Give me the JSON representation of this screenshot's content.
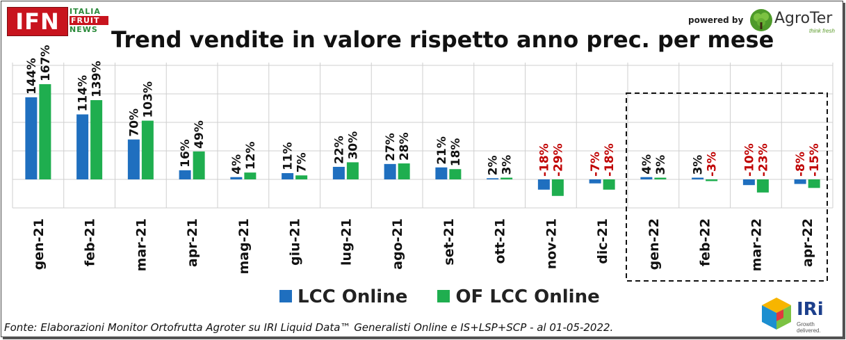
{
  "branding": {
    "ifn_main": "IFN",
    "ifn_line1": "ITALIA",
    "ifn_line2": "FRUIT",
    "ifn_line3": "NEWS",
    "powered_by": "powered by",
    "agroter_name": "AgroTer",
    "agroter_tagline": "think fresh",
    "iri_name": "IRi",
    "iri_tagline": "Growth delivered."
  },
  "source_note": "Fonte: Elaborazioni Monitor Ortofrutta Agroter su IRI Liquid Data™ Generalisti Online e IS+LSP+SCP - al 01-05-2022.",
  "colors": {
    "lcc": "#1f6fbf",
    "of_lcc": "#1fae4f",
    "positive_label": "#111111",
    "negative_label": "#c00000",
    "grid": "#cfcfcf"
  },
  "chart_data": {
    "type": "bar",
    "title": "Trend vendite in valore rispetto anno prec. per mese",
    "categories": [
      "gen-21",
      "feb-21",
      "mar-21",
      "apr-21",
      "mag-21",
      "giu-21",
      "lug-21",
      "ago-21",
      "set-21",
      "ott-21",
      "nov-21",
      "dic-21",
      "gen-22",
      "feb-22",
      "mar-22",
      "apr-22"
    ],
    "series": [
      {
        "name": "LCC Online",
        "values": [
          144,
          114,
          70,
          16,
          4,
          11,
          22,
          27,
          21,
          2,
          -18,
          -7,
          4,
          3,
          -10,
          -8
        ]
      },
      {
        "name": "OF LCC Online",
        "values": [
          167,
          139,
          103,
          49,
          12,
          7,
          30,
          28,
          18,
          3,
          -29,
          -18,
          3,
          -3,
          -23,
          -15
        ]
      }
    ],
    "value_suffix": "%",
    "ylim": [
      -50,
      200
    ],
    "grid": true,
    "legend_position": "bottom",
    "highlight": {
      "from": "gen-22",
      "to": "apr-22",
      "style": "dashed-box"
    }
  }
}
